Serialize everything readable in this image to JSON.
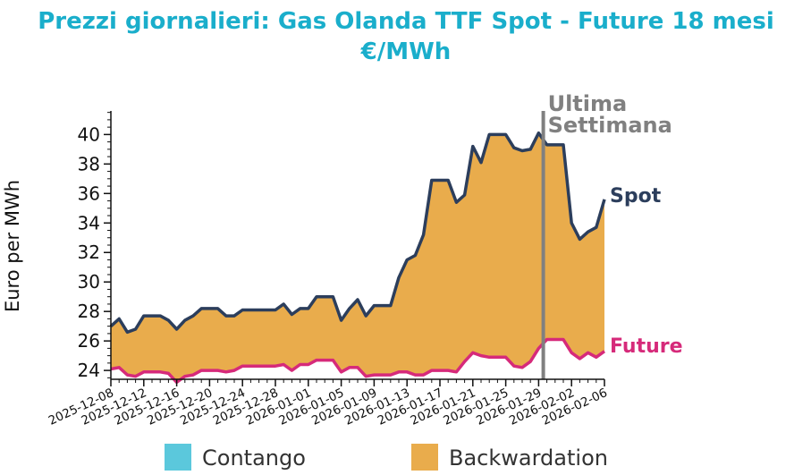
{
  "chart_data": {
    "type": "area",
    "title_line1": "Prezzi giornalieri: Gas Olanda TTF Spot - Future 18 mesi",
    "title_line2": "€/MWh",
    "xlabel": "",
    "ylabel": "Euro per MWh",
    "ylim": [
      23.4,
      41.6
    ],
    "y_ticks": [
      24,
      26,
      28,
      30,
      32,
      34,
      36,
      38,
      40
    ],
    "x_start": "2025-12-08",
    "x_end": "2026-02-06",
    "x_ticks": [
      "2025-12-08",
      "2025-12-12",
      "2025-12-16",
      "2025-12-20",
      "2025-12-24",
      "2025-12-28",
      "2026-01-01",
      "2026-01-05",
      "2026-01-09",
      "2026-01-13",
      "2026-01-17",
      "2026-01-21",
      "2026-01-25",
      "2026-01-29",
      "2026-02-02",
      "2026-02-06"
    ],
    "grid": false,
    "marker": {
      "date": "2026-01-30",
      "label_line1": "Ultima",
      "label_line2": "Settimana",
      "color": "#808080"
    },
    "series": [
      {
        "name": "Spot",
        "color": "#2c3e5c",
        "points": [
          [
            "2025-12-08",
            27.0
          ],
          [
            "2025-12-09",
            27.5
          ],
          [
            "2025-12-10",
            26.6
          ],
          [
            "2025-12-11",
            26.8
          ],
          [
            "2025-12-12",
            27.7
          ],
          [
            "2025-12-13",
            27.7
          ],
          [
            "2025-12-14",
            27.7
          ],
          [
            "2025-12-15",
            27.4
          ],
          [
            "2025-12-16",
            26.8
          ],
          [
            "2025-12-17",
            27.4
          ],
          [
            "2025-12-18",
            27.7
          ],
          [
            "2025-12-19",
            28.2
          ],
          [
            "2025-12-20",
            28.2
          ],
          [
            "2025-12-21",
            28.2
          ],
          [
            "2025-12-22",
            27.7
          ],
          [
            "2025-12-23",
            27.7
          ],
          [
            "2025-12-24",
            28.1
          ],
          [
            "2025-12-25",
            28.1
          ],
          [
            "2025-12-26",
            28.1
          ],
          [
            "2025-12-27",
            28.1
          ],
          [
            "2025-12-28",
            28.1
          ],
          [
            "2025-12-29",
            28.5
          ],
          [
            "2025-12-30",
            27.8
          ],
          [
            "2025-12-31",
            28.2
          ],
          [
            "2026-01-01",
            28.2
          ],
          [
            "2026-01-02",
            29.0
          ],
          [
            "2026-01-03",
            29.0
          ],
          [
            "2026-01-04",
            29.0
          ],
          [
            "2026-01-05",
            27.4
          ],
          [
            "2026-01-06",
            28.2
          ],
          [
            "2026-01-07",
            28.8
          ],
          [
            "2026-01-08",
            27.7
          ],
          [
            "2026-01-09",
            28.4
          ],
          [
            "2026-01-10",
            28.4
          ],
          [
            "2026-01-11",
            28.4
          ],
          [
            "2026-01-12",
            30.3
          ],
          [
            "2026-01-13",
            31.5
          ],
          [
            "2026-01-14",
            31.8
          ],
          [
            "2026-01-15",
            33.2
          ],
          [
            "2026-01-16",
            36.9
          ],
          [
            "2026-01-17",
            36.9
          ],
          [
            "2026-01-18",
            36.9
          ],
          [
            "2026-01-19",
            35.4
          ],
          [
            "2026-01-20",
            35.9
          ],
          [
            "2026-01-21",
            39.2
          ],
          [
            "2026-01-22",
            38.1
          ],
          [
            "2026-01-23",
            40.0
          ],
          [
            "2026-01-24",
            40.0
          ],
          [
            "2026-01-25",
            40.0
          ],
          [
            "2026-01-26",
            39.1
          ],
          [
            "2026-01-27",
            38.9
          ],
          [
            "2026-01-28",
            39.0
          ],
          [
            "2026-01-29",
            40.1
          ],
          [
            "2026-01-30",
            39.3
          ],
          [
            "2026-01-31",
            39.3
          ],
          [
            "2026-02-01",
            39.3
          ],
          [
            "2026-02-02",
            34.0
          ],
          [
            "2026-02-03",
            32.9
          ],
          [
            "2026-02-04",
            33.4
          ],
          [
            "2026-02-05",
            33.7
          ],
          [
            "2026-02-06",
            35.6
          ]
        ]
      },
      {
        "name": "Future",
        "color": "#d62a7a",
        "points": [
          [
            "2025-12-08",
            24.1
          ],
          [
            "2025-12-09",
            24.2
          ],
          [
            "2025-12-10",
            23.7
          ],
          [
            "2025-12-11",
            23.6
          ],
          [
            "2025-12-12",
            23.9
          ],
          [
            "2025-12-13",
            23.9
          ],
          [
            "2025-12-14",
            23.9
          ],
          [
            "2025-12-15",
            23.8
          ],
          [
            "2025-12-16",
            23.2
          ],
          [
            "2025-12-17",
            23.6
          ],
          [
            "2025-12-18",
            23.7
          ],
          [
            "2025-12-19",
            24.0
          ],
          [
            "2025-12-20",
            24.0
          ],
          [
            "2025-12-21",
            24.0
          ],
          [
            "2025-12-22",
            23.9
          ],
          [
            "2025-12-23",
            24.0
          ],
          [
            "2025-12-24",
            24.3
          ],
          [
            "2025-12-25",
            24.3
          ],
          [
            "2025-12-26",
            24.3
          ],
          [
            "2025-12-27",
            24.3
          ],
          [
            "2025-12-28",
            24.3
          ],
          [
            "2025-12-29",
            24.4
          ],
          [
            "2025-12-30",
            24.0
          ],
          [
            "2025-12-31",
            24.4
          ],
          [
            "2026-01-01",
            24.4
          ],
          [
            "2026-01-02",
            24.7
          ],
          [
            "2026-01-03",
            24.7
          ],
          [
            "2026-01-04",
            24.7
          ],
          [
            "2026-01-05",
            23.9
          ],
          [
            "2026-01-06",
            24.2
          ],
          [
            "2026-01-07",
            24.2
          ],
          [
            "2026-01-08",
            23.6
          ],
          [
            "2026-01-09",
            23.7
          ],
          [
            "2026-01-10",
            23.7
          ],
          [
            "2026-01-11",
            23.7
          ],
          [
            "2026-01-12",
            23.9
          ],
          [
            "2026-01-13",
            23.9
          ],
          [
            "2026-01-14",
            23.7
          ],
          [
            "2026-01-15",
            23.7
          ],
          [
            "2026-01-16",
            24.0
          ],
          [
            "2026-01-17",
            24.0
          ],
          [
            "2026-01-18",
            24.0
          ],
          [
            "2026-01-19",
            23.9
          ],
          [
            "2026-01-20",
            24.6
          ],
          [
            "2026-01-21",
            25.2
          ],
          [
            "2026-01-22",
            25.0
          ],
          [
            "2026-01-23",
            24.9
          ],
          [
            "2026-01-24",
            24.9
          ],
          [
            "2026-01-25",
            24.9
          ],
          [
            "2026-01-26",
            24.3
          ],
          [
            "2026-01-27",
            24.2
          ],
          [
            "2026-01-28",
            24.6
          ],
          [
            "2026-01-29",
            25.5
          ],
          [
            "2026-01-30",
            26.1
          ],
          [
            "2026-01-31",
            26.1
          ],
          [
            "2026-02-01",
            26.1
          ],
          [
            "2026-02-02",
            25.2
          ],
          [
            "2026-02-03",
            24.8
          ],
          [
            "2026-02-04",
            25.2
          ],
          [
            "2026-02-05",
            24.9
          ],
          [
            "2026-02-06",
            25.3
          ]
        ]
      }
    ],
    "fills": {
      "contango_color": "#5bc8dc",
      "backwardation_color": "#e9ac4c"
    },
    "legend": {
      "placement": "bottom",
      "items": [
        {
          "label": "Contango",
          "color": "#5bc8dc"
        },
        {
          "label": "Backwardation",
          "color": "#e9ac4c"
        }
      ]
    }
  }
}
